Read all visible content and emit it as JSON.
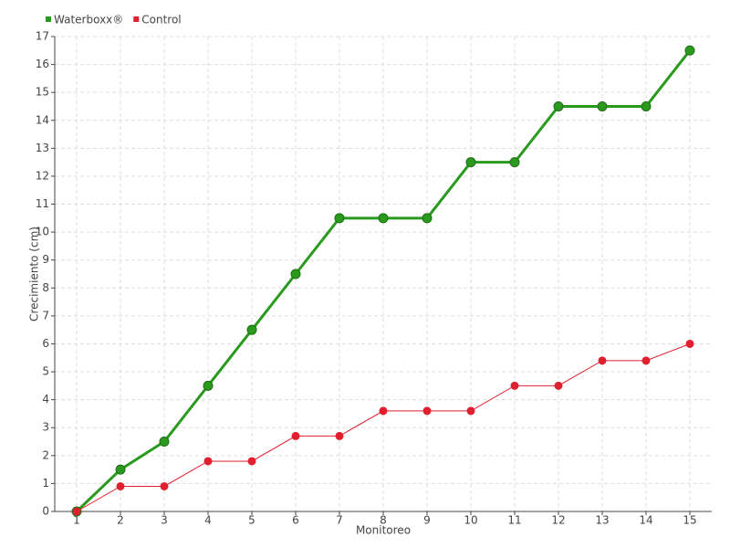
{
  "chart_data": {
    "type": "line",
    "x_label": "Monitoreo",
    "y_label": "Crecimiento (cm)",
    "categories": [
      "1",
      "2",
      "3",
      "4",
      "5",
      "6",
      "7",
      "8",
      "9",
      "10",
      "11",
      "12",
      "13",
      "14",
      "15"
    ],
    "series": [
      {
        "name": "Waterboxx®",
        "color": "#2a9a1e",
        "values": [
          0,
          1.5,
          2.5,
          4.5,
          6.5,
          8.5,
          10.5,
          10.5,
          10.5,
          12.5,
          12.5,
          14.5,
          14.5,
          14.5,
          16.5
        ]
      },
      {
        "name": "Control",
        "color": "#e0202e",
        "values": [
          0,
          0.9,
          0.9,
          1.8,
          1.8,
          2.7,
          2.7,
          3.6,
          3.6,
          3.6,
          4.5,
          4.5,
          5.4,
          5.4,
          6.0
        ]
      }
    ],
    "ylim": [
      0,
      17
    ],
    "yticks": [
      0,
      1,
      2,
      3,
      4,
      5,
      6,
      7,
      8,
      9,
      10,
      11,
      12,
      13,
      14,
      15,
      16,
      17
    ],
    "grid": true
  }
}
